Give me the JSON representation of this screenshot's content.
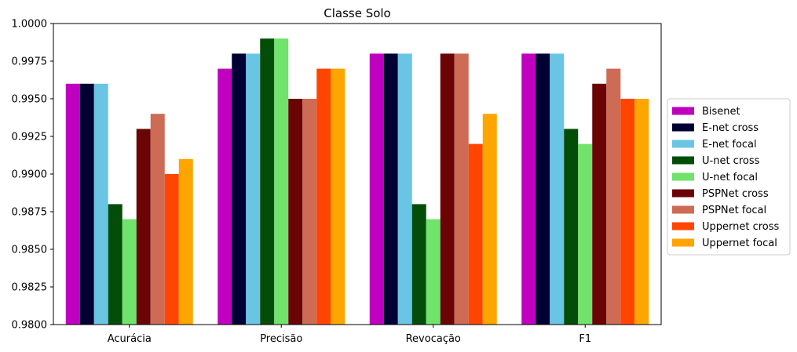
{
  "chart_data": {
    "type": "bar",
    "title": "Classe Solo",
    "xlabel": "",
    "ylabel": "",
    "ylim": [
      0.98,
      1.0
    ],
    "yticks": [
      "0.9800",
      "0.9825",
      "0.9850",
      "0.9875",
      "0.9900",
      "0.9925",
      "0.9950",
      "0.9975",
      "1.0000"
    ],
    "ytick_values": [
      0.98,
      0.9825,
      0.985,
      0.9875,
      0.99,
      0.9925,
      0.995,
      0.9975,
      1.0
    ],
    "categories": [
      "Acurácia",
      "Precisão",
      "Revocação",
      "F1"
    ],
    "series": [
      {
        "name": "Bisenet",
        "color": "#bf00bf",
        "values": [
          0.996,
          0.997,
          0.998,
          0.998
        ]
      },
      {
        "name": "E-net cross",
        "color": "#000033",
        "values": [
          0.996,
          0.998,
          0.998,
          0.998
        ]
      },
      {
        "name": "E-net focal",
        "color": "#6ac5e5",
        "values": [
          0.996,
          0.998,
          0.998,
          0.998
        ]
      },
      {
        "name": "U-net cross",
        "color": "#044d09",
        "values": [
          0.988,
          0.999,
          0.988,
          0.993
        ]
      },
      {
        "name": "U-net focal",
        "color": "#6fe36a",
        "values": [
          0.987,
          0.999,
          0.987,
          0.992
        ]
      },
      {
        "name": "PSPNet cross",
        "color": "#6b0505",
        "values": [
          0.993,
          0.995,
          0.998,
          0.996
        ]
      },
      {
        "name": "PSPNet focal",
        "color": "#cd6b55",
        "values": [
          0.994,
          0.995,
          0.998,
          0.997
        ]
      },
      {
        "name": "Uppernet cross",
        "color": "#ff4500",
        "values": [
          0.99,
          0.997,
          0.992,
          0.995
        ]
      },
      {
        "name": "Uppernet focal",
        "color": "#ffa500",
        "values": [
          0.991,
          0.997,
          0.994,
          0.995
        ]
      }
    ],
    "grid": false,
    "legend_position": "right-center"
  }
}
